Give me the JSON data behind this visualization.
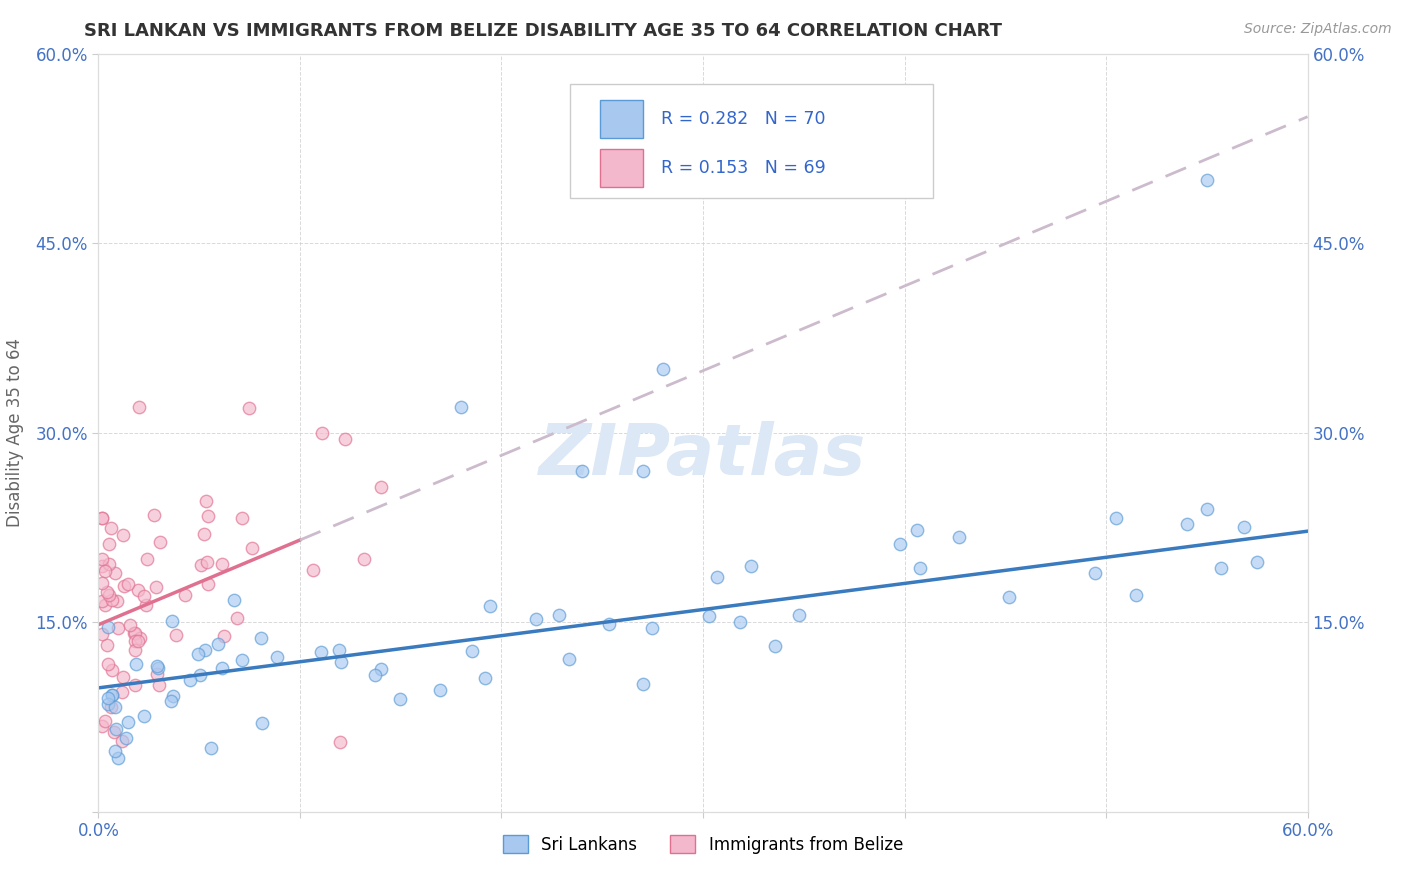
{
  "title": "SRI LANKAN VS IMMIGRANTS FROM BELIZE DISABILITY AGE 35 TO 64 CORRELATION CHART",
  "source": "Source: ZipAtlas.com",
  "ylabel": "Disability Age 35 to 64",
  "xlim": [
    0.0,
    0.6
  ],
  "ylim": [
    0.0,
    0.6
  ],
  "xtick_positions": [
    0.0,
    0.1,
    0.2,
    0.3,
    0.4,
    0.5,
    0.6
  ],
  "xtick_labels": [
    "0.0%",
    "",
    "",
    "",
    "",
    "",
    "60.0%"
  ],
  "ytick_positions": [
    0.0,
    0.15,
    0.3,
    0.45,
    0.6
  ],
  "ytick_labels": [
    "",
    "15.0%",
    "30.0%",
    "45.0%",
    "60.0%"
  ],
  "sri_lankan_face_color": "#a8c8f0",
  "sri_lankan_edge_color": "#5b9bd5",
  "belize_face_color": "#f4b8cc",
  "belize_edge_color": "#e07090",
  "sri_trend_color": "#3a7abf",
  "belize_trend_color": "#e07090",
  "gray_dash_color": "#ccbbcc",
  "R_sri": 0.282,
  "N_sri": 70,
  "R_bel": 0.153,
  "N_bel": 69,
  "legend_text_color": "#3366cc",
  "title_color": "#333333",
  "source_color": "#999999",
  "axis_label_color": "#666666",
  "tick_label_color": "#4472c4",
  "watermark_color": "#dce8f5",
  "sri_trend_start_y": 0.098,
  "sri_trend_end_y": 0.222,
  "bel_trend_start_y": 0.148,
  "bel_trend_end_y": 0.55,
  "scatter_size": 80,
  "scatter_alpha": 0.65,
  "scatter_linewidth": 1.0
}
